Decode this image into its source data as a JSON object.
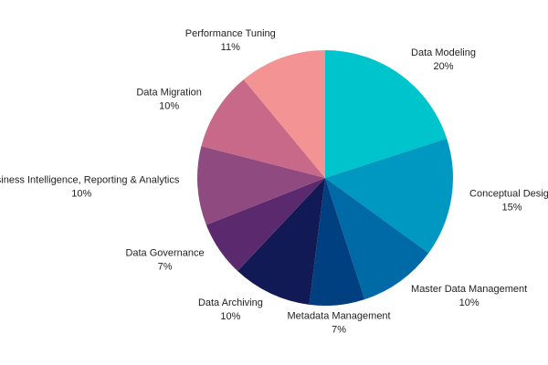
{
  "chart_data": {
    "type": "pie",
    "categories": [
      "Data Modeling",
      "Conceptual Design",
      "Master Data Management",
      "Metadata Management",
      "Data Archiving",
      "Data Governance",
      "Business Intelligence, Reporting & Analytics",
      "Data Migration",
      "Performance Tuning"
    ],
    "values": [
      20,
      15,
      10,
      7,
      10,
      7,
      10,
      10,
      11
    ],
    "value_labels": [
      "20%",
      "15%",
      "10%",
      "7%",
      "10%",
      "7%",
      "10%",
      "10%",
      "11%"
    ],
    "colors": [
      "#00c4cc",
      "#0097c0",
      "#006aa6",
      "#003f80",
      "#111a55",
      "#5b2a6e",
      "#8f4a80",
      "#c8698a",
      "#f49393"
    ]
  }
}
